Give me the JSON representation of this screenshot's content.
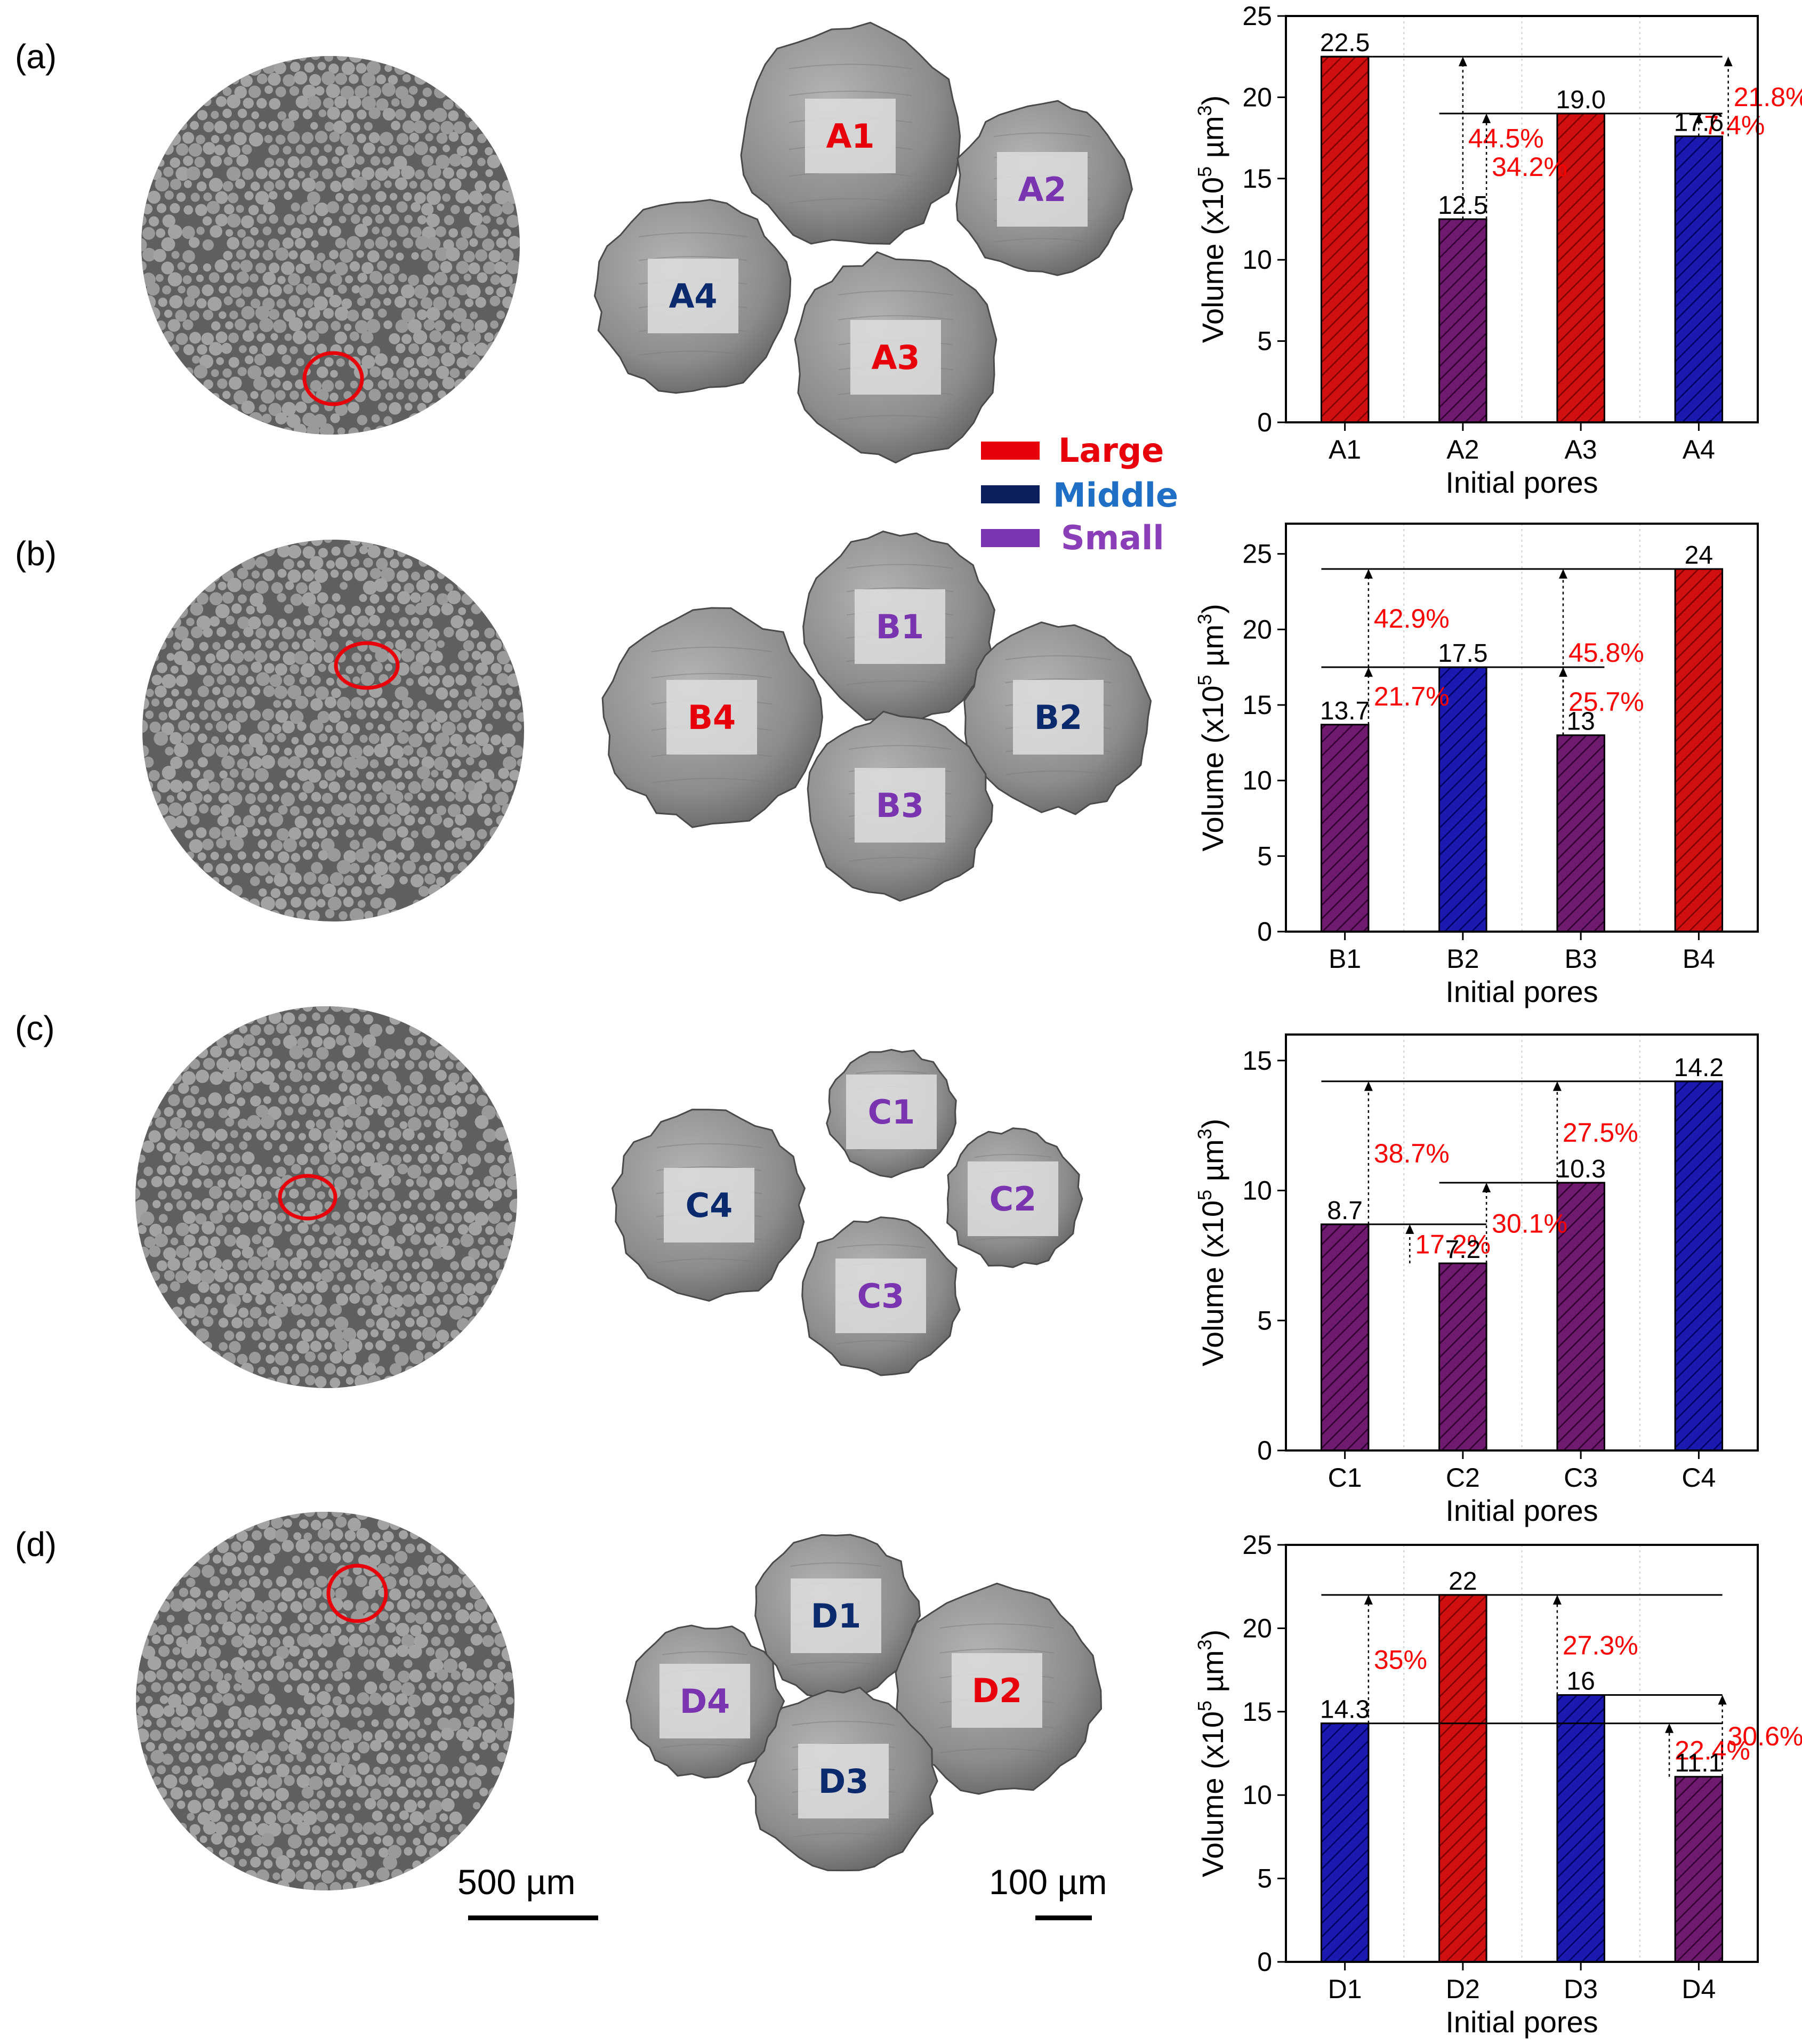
{
  "legend": [
    {
      "label": "Large",
      "bar_color": "#e8000b",
      "text_color": "#e8000b"
    },
    {
      "label": "Middle",
      "bar_color": "#0b1f5c",
      "text_color": "#1f6fc6"
    },
    {
      "label": "Small",
      "bar_color": "#7a34b0",
      "text_color": "#8a3fb8"
    }
  ],
  "colors": {
    "large": "#d01010",
    "middle": "#1a1ab0",
    "small": "#6e1a6e",
    "pore_label_large": "#e8000b",
    "pore_label_middle": "#0b2a6e",
    "pore_label_small": "#7a34b0",
    "circle_marker": "#e8000b"
  },
  "scale_bars": [
    "500 µm",
    "100 µm"
  ],
  "panels": [
    {
      "letter": "(a)",
      "pores": [
        {
          "label": "A1",
          "size": "large"
        },
        {
          "label": "A2",
          "size": "small"
        },
        {
          "label": "A3",
          "size": "large"
        },
        {
          "label": "A4",
          "size": "middle"
        }
      ]
    },
    {
      "letter": "(b)",
      "pores": [
        {
          "label": "B1",
          "size": "small"
        },
        {
          "label": "B2",
          "size": "middle"
        },
        {
          "label": "B3",
          "size": "small"
        },
        {
          "label": "B4",
          "size": "large"
        }
      ]
    },
    {
      "letter": "(c)",
      "pores": [
        {
          "label": "C1",
          "size": "small"
        },
        {
          "label": "C2",
          "size": "small"
        },
        {
          "label": "C3",
          "size": "small"
        },
        {
          "label": "C4",
          "size": "middle"
        }
      ]
    },
    {
      "letter": "(d)",
      "pores": [
        {
          "label": "D1",
          "size": "middle"
        },
        {
          "label": "D2",
          "size": "large"
        },
        {
          "label": "D3",
          "size": "middle"
        },
        {
          "label": "D4",
          "size": "small"
        }
      ]
    }
  ],
  "chart_data": [
    {
      "type": "bar",
      "categories": [
        "A1",
        "A2",
        "A3",
        "A4"
      ],
      "values": [
        22.5,
        12.5,
        19.0,
        17.6
      ],
      "value_labels": [
        "22.5",
        "12.5",
        "19.0",
        "17.6"
      ],
      "sizes": [
        "large",
        "small",
        "large",
        "middle"
      ],
      "xlabel": "Initial pores",
      "ylabel": "Volume (x10^5 µm^3)",
      "ylabel_parts": {
        "prefix": "Volume (x10",
        "exp1": "5",
        "mid": " µm",
        "exp2": "3",
        "suffix": ")"
      },
      "ylim": [
        0,
        25
      ],
      "yticks": [
        0,
        5,
        10,
        15,
        20,
        25
      ],
      "reference_lines": [
        {
          "y": 22.5,
          "from_cat": 0,
          "to_cat": 3
        },
        {
          "y": 19.0,
          "from_cat": 1,
          "to_cat": 3
        }
      ],
      "annotations": [
        {
          "text": "44.5%",
          "cat": 1,
          "from_y": 12.5,
          "to_y": 22.5
        },
        {
          "text": "34.2%",
          "cat": 1.2,
          "from_y": 12.5,
          "to_y": 19.0
        },
        {
          "text": "7.4%",
          "cat": 3,
          "from_y": 17.6,
          "to_y": 19.0
        },
        {
          "text": "21.8%",
          "cat": 3.25,
          "from_y": 17.6,
          "to_y": 22.5
        }
      ]
    },
    {
      "type": "bar",
      "categories": [
        "B1",
        "B2",
        "B3",
        "B4"
      ],
      "values": [
        13.7,
        17.5,
        13,
        24
      ],
      "value_labels": [
        "13.7",
        "17.5",
        "13",
        "24"
      ],
      "sizes": [
        "small",
        "middle",
        "small",
        "large"
      ],
      "xlabel": "Initial pores",
      "ylabel": "Volume (x10^5 µm^3)",
      "ylabel_parts": {
        "prefix": "Volume (x10",
        "exp1": "5",
        "mid": " µm",
        "exp2": "3",
        "suffix": ")"
      },
      "ylim": [
        0,
        27
      ],
      "yticks": [
        0,
        5,
        10,
        15,
        20,
        25
      ],
      "reference_lines": [
        {
          "y": 24,
          "from_cat": 0,
          "to_cat": 3
        },
        {
          "y": 17.5,
          "from_cat": 0,
          "to_cat": 2
        }
      ],
      "annotations": [
        {
          "text": "42.9%",
          "cat": 0.2,
          "from_y": 17.5,
          "to_y": 24
        },
        {
          "text": "21.7%",
          "cat": 0.2,
          "from_y": 13.7,
          "to_y": 17.5
        },
        {
          "text": "45.8%",
          "cat": 1.85,
          "from_y": 13,
          "to_y": 24
        },
        {
          "text": "25.7%",
          "cat": 1.85,
          "from_y": 13,
          "to_y": 17.5
        }
      ]
    },
    {
      "type": "bar",
      "categories": [
        "C1",
        "C2",
        "C3",
        "C4"
      ],
      "values": [
        8.7,
        7.2,
        10.3,
        14.2
      ],
      "value_labels": [
        "8.7",
        "7.2",
        "10.3",
        "14.2"
      ],
      "sizes": [
        "small",
        "small",
        "small",
        "middle"
      ],
      "xlabel": "Initial pores",
      "ylabel": "Volume (x10^5 µm^3)",
      "ylabel_parts": {
        "prefix": "Volume (x10",
        "exp1": "5",
        "mid": " µm",
        "exp2": "3",
        "suffix": ")"
      },
      "ylim": [
        0,
        16
      ],
      "yticks": [
        0,
        5,
        10,
        15
      ],
      "reference_lines": [
        {
          "y": 14.2,
          "from_cat": 0,
          "to_cat": 3
        },
        {
          "y": 10.3,
          "from_cat": 1,
          "to_cat": 2
        },
        {
          "y": 8.7,
          "from_cat": 0,
          "to_cat": 1
        }
      ],
      "annotations": [
        {
          "text": "38.7%",
          "cat": 0.2,
          "from_y": 8.7,
          "to_y": 14.2
        },
        {
          "text": "17.2%",
          "cat": 0.55,
          "from_y": 7.2,
          "to_y": 8.7
        },
        {
          "text": "30.1%",
          "cat": 1.2,
          "from_y": 7.2,
          "to_y": 10.3
        },
        {
          "text": "27.5%",
          "cat": 1.8,
          "from_y": 10.3,
          "to_y": 14.2
        }
      ]
    },
    {
      "type": "bar",
      "categories": [
        "D1",
        "D2",
        "D3",
        "D4"
      ],
      "values": [
        14.3,
        22,
        16,
        11.1
      ],
      "value_labels": [
        "14.3",
        "22",
        "16",
        "11.1"
      ],
      "sizes": [
        "middle",
        "large",
        "middle",
        "small"
      ],
      "xlabel": "Initial pores",
      "ylabel": "Volume (x10^5 µm^3)",
      "ylabel_parts": {
        "prefix": "Volume (x10",
        "exp1": "5",
        "mid": " µm",
        "exp2": "3",
        "suffix": ")"
      },
      "ylim": [
        0,
        25
      ],
      "yticks": [
        0,
        5,
        10,
        15,
        20,
        25
      ],
      "reference_lines": [
        {
          "y": 22,
          "from_cat": 0,
          "to_cat": 3
        },
        {
          "y": 16,
          "from_cat": 2,
          "to_cat": 3
        },
        {
          "y": 14.3,
          "from_cat": 0,
          "to_cat": 3
        }
      ],
      "annotations": [
        {
          "text": "35%",
          "cat": 0.2,
          "from_y": 14.3,
          "to_y": 22
        },
        {
          "text": "27.3%",
          "cat": 1.8,
          "from_y": 16,
          "to_y": 22
        },
        {
          "text": "22.4%",
          "cat": 2.75,
          "from_y": 11.1,
          "to_y": 14.3
        },
        {
          "text": "30.6%",
          "cat": 3.2,
          "from_y": 11.1,
          "to_y": 16
        }
      ]
    }
  ]
}
